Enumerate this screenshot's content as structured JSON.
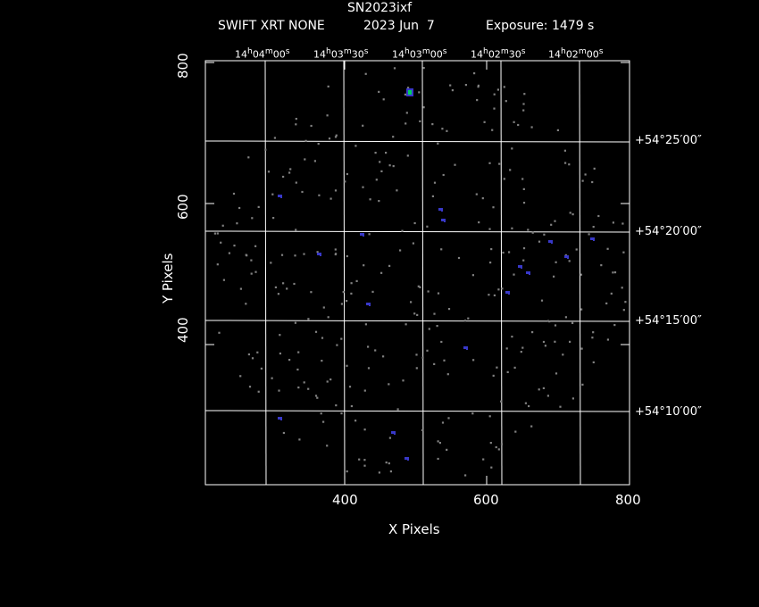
{
  "title": "SN2023ixf",
  "subtitle": {
    "instrument": "SWIFT XRT NONE",
    "date": "2023 Jun  7",
    "exposure": "Exposure: 1479 s"
  },
  "axes": {
    "xlabel": "X Pixels",
    "ylabel": "Y Pixels",
    "xticks": [
      "400",
      "600",
      "800"
    ],
    "yticks": [
      "400",
      "600",
      "800"
    ],
    "ra_labels": [
      "14h04m00s",
      "14h03m30s",
      "14h03m00s",
      "14h02m30s",
      "14h02m00s"
    ],
    "dec_labels": [
      "+54°25′00″",
      "+54°20′00″",
      "+54°15′00″",
      "+54°10′00″"
    ]
  },
  "colors": {
    "background": "#000000",
    "frame": "#ffffff",
    "photon": "#808080",
    "source": "#3838c8",
    "bright_source": "#00d060"
  }
}
